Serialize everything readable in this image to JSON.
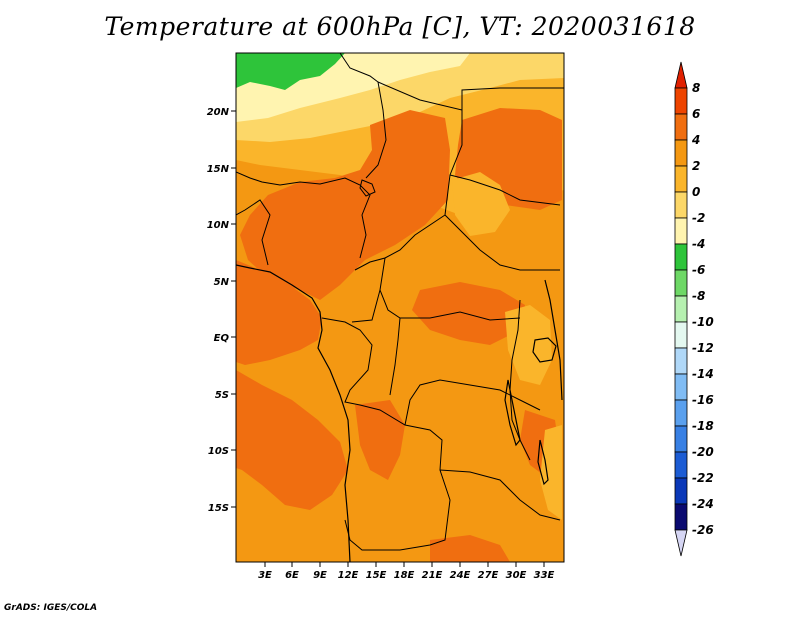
{
  "title": "Temperature at 600hPa [C], VT: 2020031618",
  "credit": "GrADS: IGES/COLA",
  "lat_ticks": [
    "20N",
    "15N",
    "10N",
    "5N",
    "EQ",
    "5S",
    "10S",
    "15S"
  ],
  "lon_ticks": [
    "3E",
    "6E",
    "9E",
    "12E",
    "15E",
    "18E",
    "21E",
    "24E",
    "27E",
    "30E",
    "33E"
  ],
  "colorbar": {
    "labels": [
      "8",
      "6",
      "4",
      "2",
      "0",
      "-2",
      "-4",
      "-6",
      "-8",
      "-10",
      "-12",
      "-14",
      "-16",
      "-18",
      "-20",
      "-22",
      "-24",
      "-26"
    ],
    "colors": [
      "#e02000",
      "#ee4400",
      "#f06e10",
      "#f49812",
      "#fab52b",
      "#fcd768",
      "#fff4b0",
      "#2ec43a",
      "#6ed866",
      "#b6f0b0",
      "#e4f8f0",
      "#b0d8f8",
      "#80bcf4",
      "#5aa0ee",
      "#3880e4",
      "#1c5cd4",
      "#0a38b8",
      "#0a0a70",
      "#d6d6f4"
    ]
  },
  "colors": {
    "mid_orange": "#f49812",
    "dark_orange": "#f06e10",
    "light_orange": "#fab52b",
    "pale_yellow": "#fcd768",
    "cream": "#fff4b0",
    "green": "#2ec43a"
  }
}
